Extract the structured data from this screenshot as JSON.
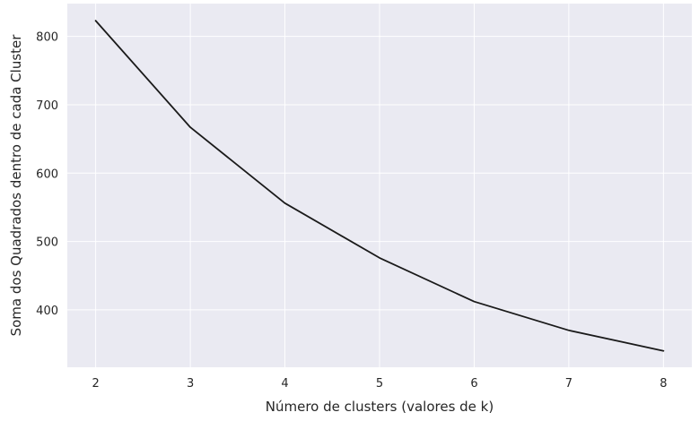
{
  "chart_data": {
    "type": "line",
    "title": "",
    "xlabel": "Número de clusters (valores de k)",
    "ylabel": "Soma dos Quadrados dentro de cada Cluster",
    "x": [
      2,
      3,
      4,
      5,
      6,
      7,
      8
    ],
    "series": [
      {
        "values": [
          823,
          667,
          556,
          476,
          412,
          370,
          340
        ]
      }
    ],
    "xlim": [
      1.7,
      8.3
    ],
    "ylim": [
      316,
      848
    ],
    "xticks": [
      "2",
      "3",
      "4",
      "5",
      "6",
      "7",
      "8"
    ],
    "yticks": [
      "400",
      "500",
      "600",
      "700",
      "800"
    ],
    "grid": true,
    "legend": "none",
    "colors": {
      "background": "#eaeaf2",
      "grid": "#ffffff",
      "line": "#1a1a1a",
      "text": "#262626"
    }
  }
}
